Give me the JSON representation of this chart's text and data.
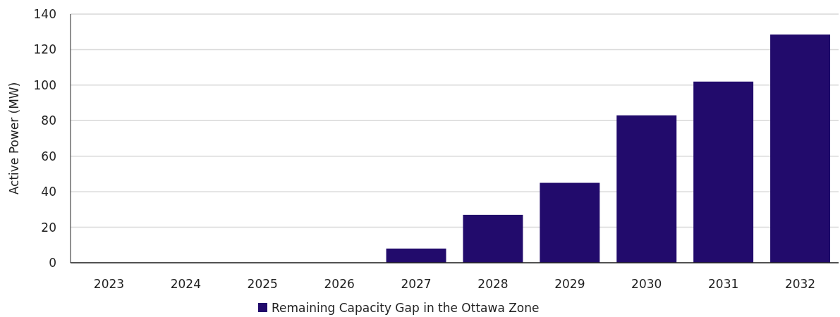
{
  "chart_data": {
    "type": "bar",
    "ylabel": "Active Power (MW)",
    "categories": [
      "2023",
      "2024",
      "2025",
      "2026",
      "2027",
      "2028",
      "2029",
      "2030",
      "2031",
      "2032"
    ],
    "series": [
      {
        "name": "Remaining Capacity Gap in the Ottawa Zone",
        "color": "#220b6c",
        "values": [
          0,
          0,
          0,
          0,
          8,
          27,
          45,
          83,
          102,
          128.5
        ]
      }
    ],
    "ylim": [
      0,
      140
    ],
    "yticks": [
      0,
      20,
      40,
      60,
      80,
      100,
      120,
      140
    ],
    "grid": "y",
    "legend": "bottom"
  }
}
